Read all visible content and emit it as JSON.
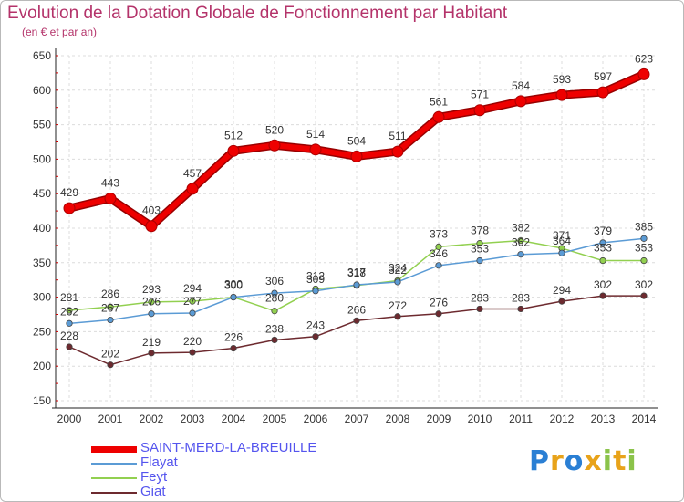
{
  "chart_data": {
    "type": "line",
    "title": "Evolution de la Dotation Globale de Fonctionnement par Habitant",
    "subtitle": "(en € et par an)",
    "xlabel": "",
    "ylabel": "",
    "x": [
      2000,
      2001,
      2002,
      2003,
      2004,
      2005,
      2006,
      2007,
      2008,
      2009,
      2010,
      2011,
      2012,
      2013,
      2014
    ],
    "ylim": [
      150,
      650
    ],
    "yticks": [
      150,
      200,
      250,
      300,
      350,
      400,
      450,
      500,
      550,
      600,
      650
    ],
    "grid": true,
    "legend_position": "bottom-left",
    "series": [
      {
        "name": "SAINT-MERD-LA-BREUILLE",
        "color": "#ee0000",
        "values": [
          429,
          443,
          403,
          457,
          512,
          520,
          514,
          504,
          511,
          561,
          571,
          584,
          593,
          597,
          623
        ]
      },
      {
        "name": "Flayat",
        "color": "#5b9bd5",
        "values": [
          262,
          267,
          276,
          277,
          300,
          306,
          309,
          318,
          322,
          346,
          353,
          362,
          364,
          379,
          385
        ]
      },
      {
        "name": "Feyt",
        "color": "#92d050",
        "values": [
          281,
          286,
          293,
          294,
          300,
          280,
          312,
          317,
          324,
          373,
          378,
          382,
          371,
          353,
          353
        ]
      },
      {
        "name": "Giat",
        "color": "#6d2a2f",
        "values": [
          228,
          202,
          219,
          220,
          226,
          238,
          243,
          266,
          272,
          276,
          283,
          283,
          294,
          302,
          302
        ]
      }
    ]
  },
  "legend": {
    "items": [
      {
        "label": "SAINT-MERD-LA-BREUILLE",
        "color": "#ee0000",
        "text_color": "#5555ee"
      },
      {
        "label": "Flayat",
        "color": "#5b9bd5",
        "text_color": "#5555ee"
      },
      {
        "label": "Feyt",
        "color": "#92d050",
        "text_color": "#5555ee"
      },
      {
        "label": "Giat",
        "color": "#6d2a2f",
        "text_color": "#5555ee"
      }
    ]
  },
  "brand": {
    "letters": [
      "P",
      "r",
      "o",
      "x",
      "i",
      "t",
      "i"
    ],
    "colors": [
      "#2a7fd4",
      "#e8a31a",
      "#2a7fd4",
      "#e8a31a",
      "#8bc34a",
      "#e8a31a",
      "#8bc34a"
    ]
  }
}
